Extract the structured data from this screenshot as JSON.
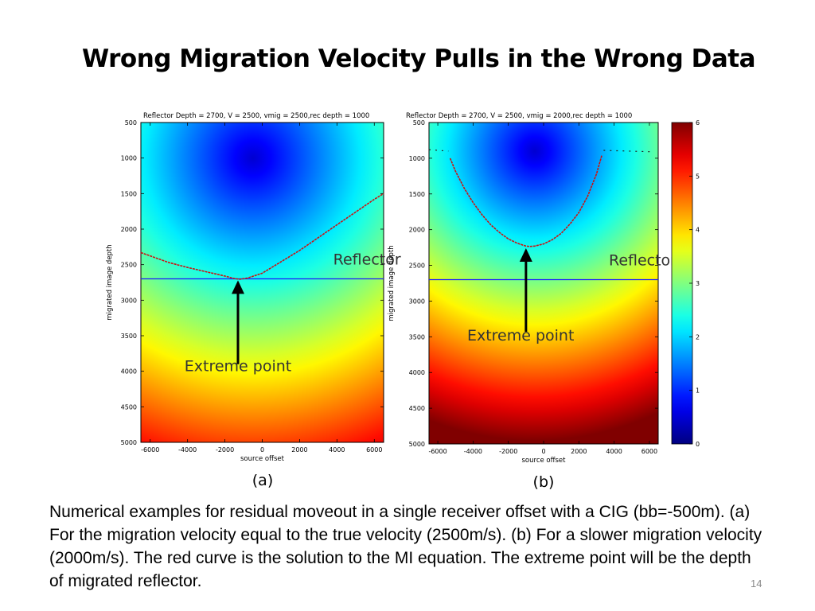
{
  "slide": {
    "title": "Wrong Migration Velocity Pulls in the Wrong Data",
    "caption": "Numerical examples for residual moveout in a single receiver offset with a CIG (bb=-500m). (a) For the migration velocity equal to the true velocity (2500m/s). (b) For a slower migration velocity (2000m/s). The red curve is the solution to the MI equation. The extreme point will be the depth of migrated reflector.",
    "page_number": "14"
  },
  "chart_data": [
    {
      "type": "heatmap",
      "panel_label": "(a)",
      "title": "Reflector Depth = 2700, V = 2500, vmig = 2500,rec depth = 1000",
      "xlabel": "source offset",
      "ylabel": "migrated image depth",
      "xlim": [
        -6500,
        6500
      ],
      "ylim": [
        500,
        5000
      ],
      "y_inverted": true,
      "xticks": [
        -6000,
        -4000,
        -2000,
        0,
        2000,
        4000,
        6000
      ],
      "yticks": [
        500,
        1000,
        1500,
        2000,
        2500,
        3000,
        3500,
        4000,
        4500,
        5000
      ],
      "colormap": "jet",
      "color_range": [
        0,
        6
      ],
      "field_center": [
        -500,
        1000
      ],
      "reflector_depth": 2700,
      "red_curve": {
        "x": [
          -6500,
          -5000,
          -4000,
          -3000,
          -2000,
          -1500,
          -1200,
          -800,
          0,
          1000,
          2000,
          3000,
          4000,
          5000,
          6000,
          6500
        ],
        "y": [
          2330,
          2470,
          2540,
          2600,
          2660,
          2695,
          2705,
          2690,
          2620,
          2460,
          2300,
          2120,
          1940,
          1760,
          1580,
          1500
        ]
      },
      "annotations": [
        {
          "text": "Reflector",
          "x": 3800,
          "y": 2500
        },
        {
          "text": "Extreme point",
          "x": -1300,
          "y": 4000,
          "arrow_to": [
            -1300,
            2720
          ],
          "arrow_from": [
            -1300,
            3900
          ]
        }
      ]
    },
    {
      "type": "heatmap",
      "panel_label": "(b)",
      "title": "Reflector Depth = 2700, V = 2500, vmig = 2000,rec depth = 1000",
      "xlabel": "source offset",
      "ylabel": "migrated image depth",
      "xlim": [
        -6500,
        6500
      ],
      "ylim": [
        500,
        5000
      ],
      "y_inverted": true,
      "xticks": [
        -6000,
        -4000,
        -2000,
        0,
        2000,
        4000,
        6000
      ],
      "yticks": [
        500,
        1000,
        1500,
        2000,
        2500,
        3000,
        3500,
        4000,
        4500,
        5000
      ],
      "colormap": "jet",
      "color_range": [
        0,
        6
      ],
      "field_center": [
        -500,
        900
      ],
      "reflector_depth": 2700,
      "red_curve": {
        "x": [
          -5300,
          -5000,
          -4500,
          -4000,
          -3500,
          -3000,
          -2500,
          -2000,
          -1500,
          -1000,
          -800,
          -500,
          0,
          500,
          1000,
          1500,
          2000,
          2500,
          3000,
          3300
        ],
        "y": [
          1000,
          1180,
          1420,
          1620,
          1790,
          1930,
          2040,
          2130,
          2190,
          2230,
          2235,
          2230,
          2200,
          2140,
          2050,
          1920,
          1760,
          1530,
          1220,
          960
        ]
      },
      "dashed_tail_left": {
        "x": [
          -6500,
          -5400
        ],
        "y": [
          880,
          900
        ]
      },
      "dashed_tail_right": {
        "x": [
          3400,
          6200
        ],
        "y": [
          890,
          910
        ]
      },
      "annotations": [
        {
          "text": "Reflector",
          "x": 3700,
          "y": 2500
        },
        {
          "text": "Extreme point",
          "x": -1300,
          "y": 3550,
          "arrow_to": [
            -1000,
            2260
          ],
          "arrow_from": [
            -1000,
            3430
          ]
        }
      ]
    }
  ],
  "colorbar": {
    "ticks": [
      0,
      1,
      2,
      3,
      4,
      5,
      6
    ],
    "range": [
      0,
      6
    ],
    "colormap": "jet"
  },
  "colors": {
    "curve": "#cc1111",
    "reflector_line": "#1a1aff",
    "arrow": "#000000",
    "annotation_text": "#333333"
  }
}
